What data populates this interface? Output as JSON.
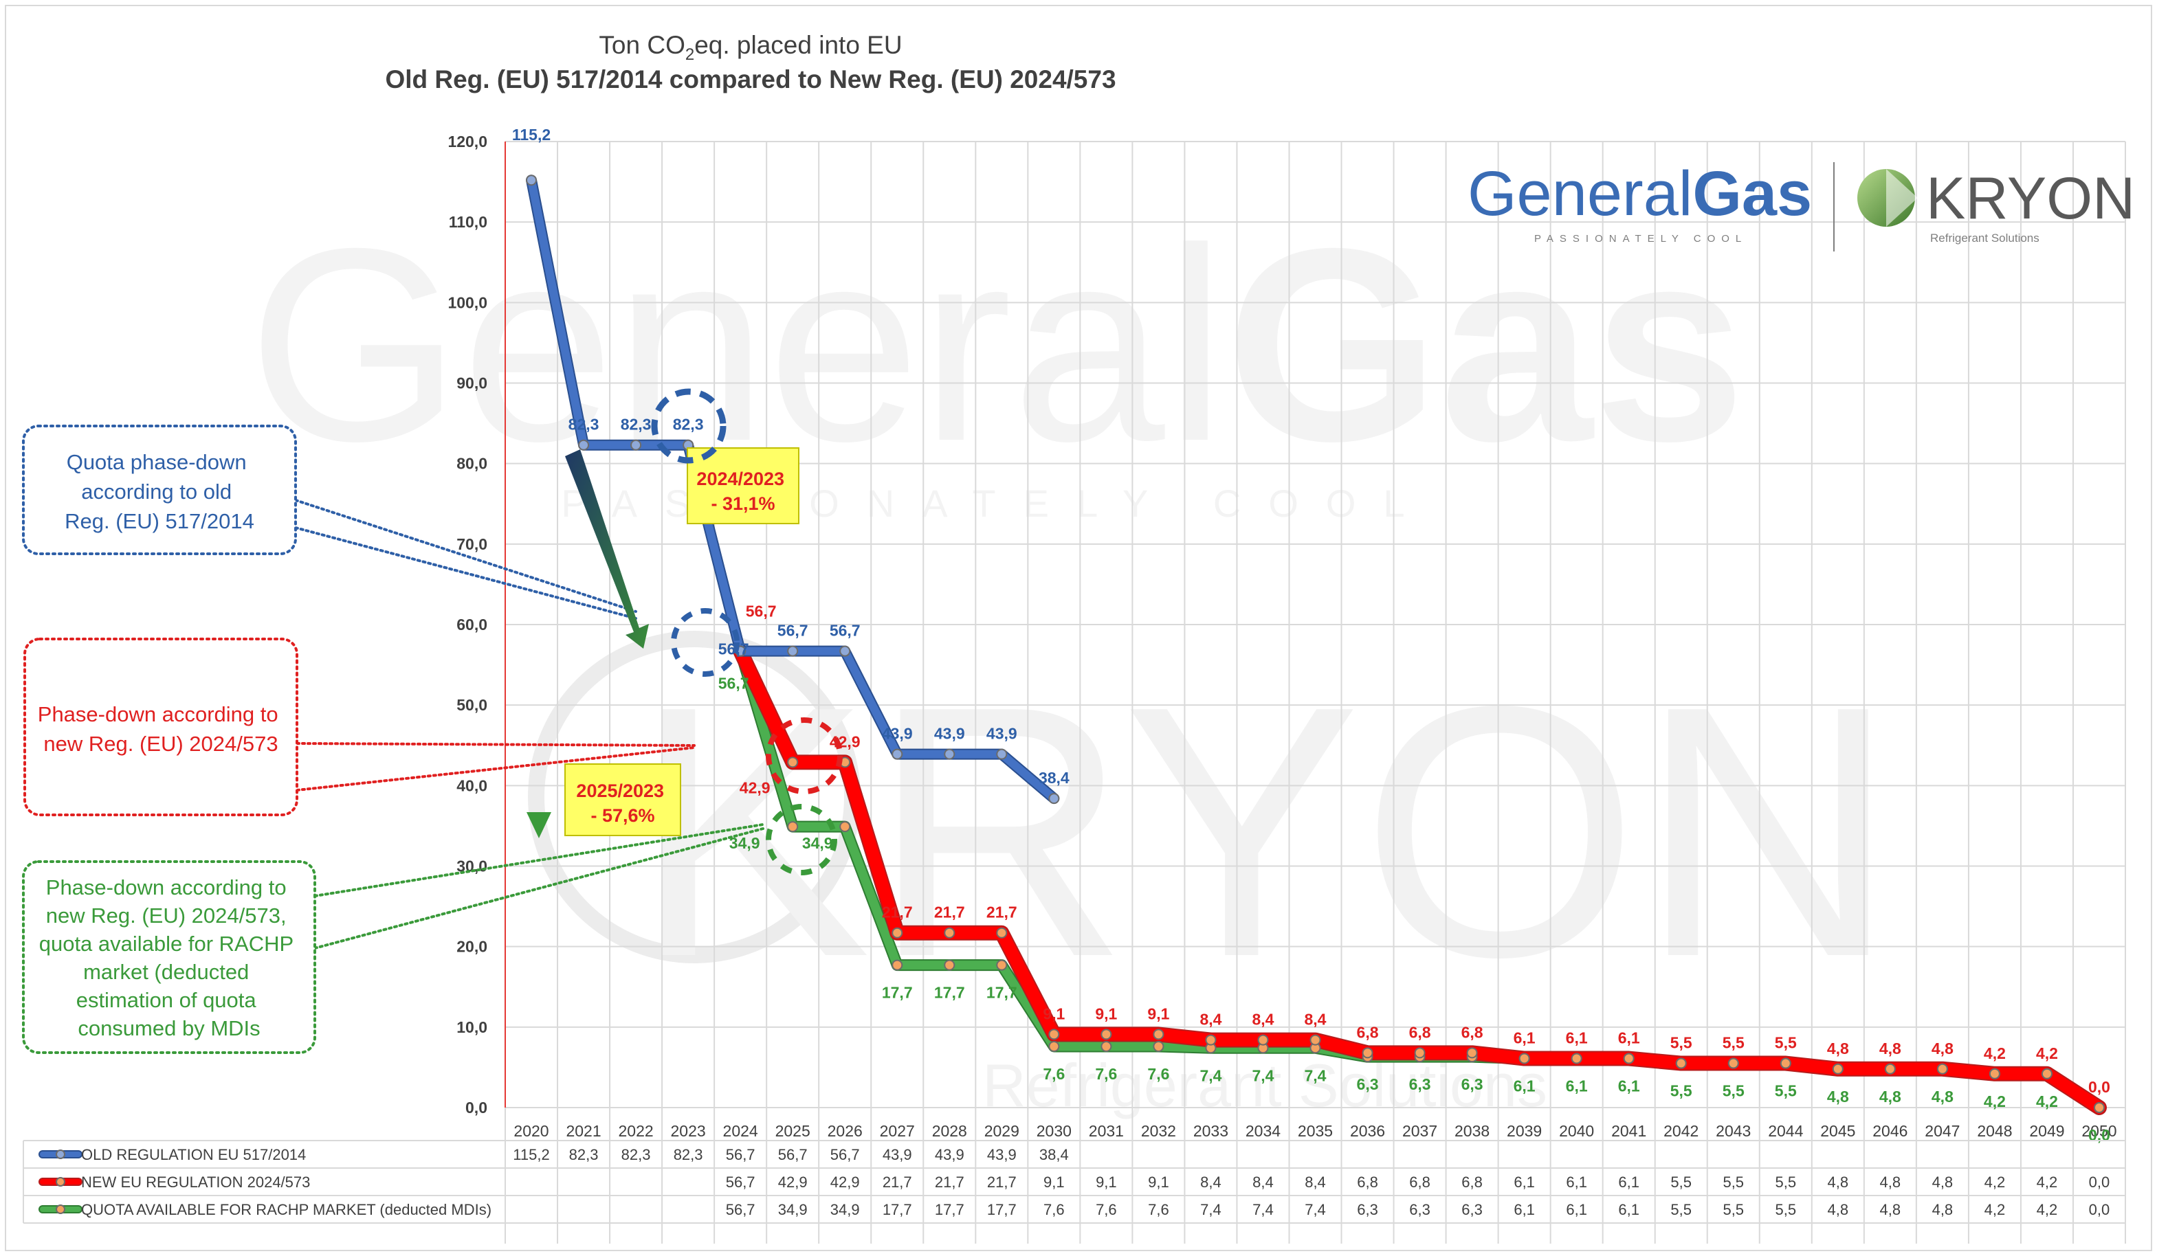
{
  "chart_data": {
    "type": "line",
    "title_line1_pre": "Ton CO",
    "title_line1_sub": "2",
    "title_line1_post": "eq. placed into EU",
    "title_line2": "Old Reg. (EU) 517/2014 compared to New Reg. (EU) 2024/573",
    "xlabel": "",
    "ylabel": "",
    "ylim": [
      0,
      120
    ],
    "y_ticks": [
      "0,0",
      "10,0",
      "20,0",
      "30,0",
      "40,0",
      "50,0",
      "60,0",
      "70,0",
      "80,0",
      "90,0",
      "100,0",
      "110,0",
      "120,0"
    ],
    "grid": true,
    "x": [
      "2020",
      "2021",
      "2022",
      "2023",
      "2024",
      "2025",
      "2026",
      "2027",
      "2028",
      "2029",
      "2030",
      "2031",
      "2032",
      "2033",
      "2034",
      "2035",
      "2036",
      "2037",
      "2038",
      "2039",
      "2040",
      "2041",
      "2042",
      "2043",
      "2044",
      "2045",
      "2046",
      "2047",
      "2048",
      "2049",
      "2050"
    ],
    "series": [
      {
        "name": "OLD REGULATION EU 517/2014",
        "color": "#4472C4",
        "values": [
          115.2,
          82.3,
          82.3,
          82.3,
          56.7,
          56.7,
          56.7,
          43.9,
          43.9,
          43.9,
          38.4,
          null,
          null,
          null,
          null,
          null,
          null,
          null,
          null,
          null,
          null,
          null,
          null,
          null,
          null,
          null,
          null,
          null,
          null,
          null,
          null
        ],
        "labels": [
          "115,2",
          "82,3",
          "82,3",
          "82,3",
          "56,7",
          "56,7",
          "56,7",
          "43,9",
          "43,9",
          "43,9",
          "38,4",
          "",
          "",
          "",
          "",
          "",
          "",
          "",
          "",
          "",
          "",
          "",
          "",
          "",
          "",
          "",
          "",
          "",
          "",
          "",
          ""
        ]
      },
      {
        "name": "NEW EU REGULATION 2024/573",
        "color": "#FF0000",
        "values": [
          null,
          null,
          null,
          null,
          56.7,
          42.9,
          42.9,
          21.7,
          21.7,
          21.7,
          9.1,
          9.1,
          9.1,
          8.4,
          8.4,
          8.4,
          6.8,
          6.8,
          6.8,
          6.1,
          6.1,
          6.1,
          5.5,
          5.5,
          5.5,
          4.8,
          4.8,
          4.8,
          4.2,
          4.2,
          0.0
        ],
        "labels": [
          "",
          "",
          "",
          "",
          "56,7",
          "42,9",
          "42,9",
          "21,7",
          "21,7",
          "21,7",
          "9,1",
          "9,1",
          "9,1",
          "8,4",
          "8,4",
          "8,4",
          "6,8",
          "6,8",
          "6,8",
          "6,1",
          "6,1",
          "6,1",
          "5,5",
          "5,5",
          "5,5",
          "4,8",
          "4,8",
          "4,8",
          "4,2",
          "4,2",
          "0,0"
        ]
      },
      {
        "name": "QUOTA AVAILABLE FOR RACHP MARKET (deducted MDIs)",
        "color": "#4CAF50",
        "values": [
          null,
          null,
          null,
          null,
          56.7,
          34.9,
          34.9,
          17.7,
          17.7,
          17.7,
          7.6,
          7.6,
          7.6,
          7.4,
          7.4,
          7.4,
          6.3,
          6.3,
          6.3,
          6.1,
          6.1,
          6.1,
          5.5,
          5.5,
          5.5,
          4.8,
          4.8,
          4.8,
          4.2,
          4.2,
          0.0
        ],
        "labels": [
          "",
          "",
          "",
          "",
          "56,7",
          "34,9",
          "34,9",
          "17,7",
          "17,7",
          "17,7",
          "7,6",
          "7,6",
          "7,6",
          "7,4",
          "7,4",
          "7,4",
          "6,3",
          "6,3",
          "6,3",
          "6,1",
          "6,1",
          "6,1",
          "5,5",
          "5,5",
          "5,5",
          "4,8",
          "4,8",
          "4,8",
          "4,2",
          "4,2",
          "0,0"
        ]
      }
    ],
    "annotations": {
      "old_note": [
        "Quota phase-down",
        "according to old",
        "Reg. (EU) 517/2014"
      ],
      "new_note": [
        "Phase-down according to",
        "new Reg. (EU) 2024/573"
      ],
      "rachp_note": [
        "Phase-down according to",
        "new Reg. (EU) 2024/573,",
        "quota available for RACHP",
        "market (deducted",
        "estimation of quota",
        "consumed by MDIs"
      ],
      "box_2024": [
        "2024/2023",
        "- 31,1%"
      ],
      "box_2025": [
        "2025/2023",
        "- 57,6%"
      ]
    },
    "logo_generalgas": {
      "word_a": "General",
      "word_b": "Gas",
      "tagline": "PASSIONATELY COOL"
    },
    "logo_kryon": {
      "word": "KRYON",
      "tagline": "Refrigerant Solutions"
    },
    "legend_placement": "bottom (data table)"
  }
}
